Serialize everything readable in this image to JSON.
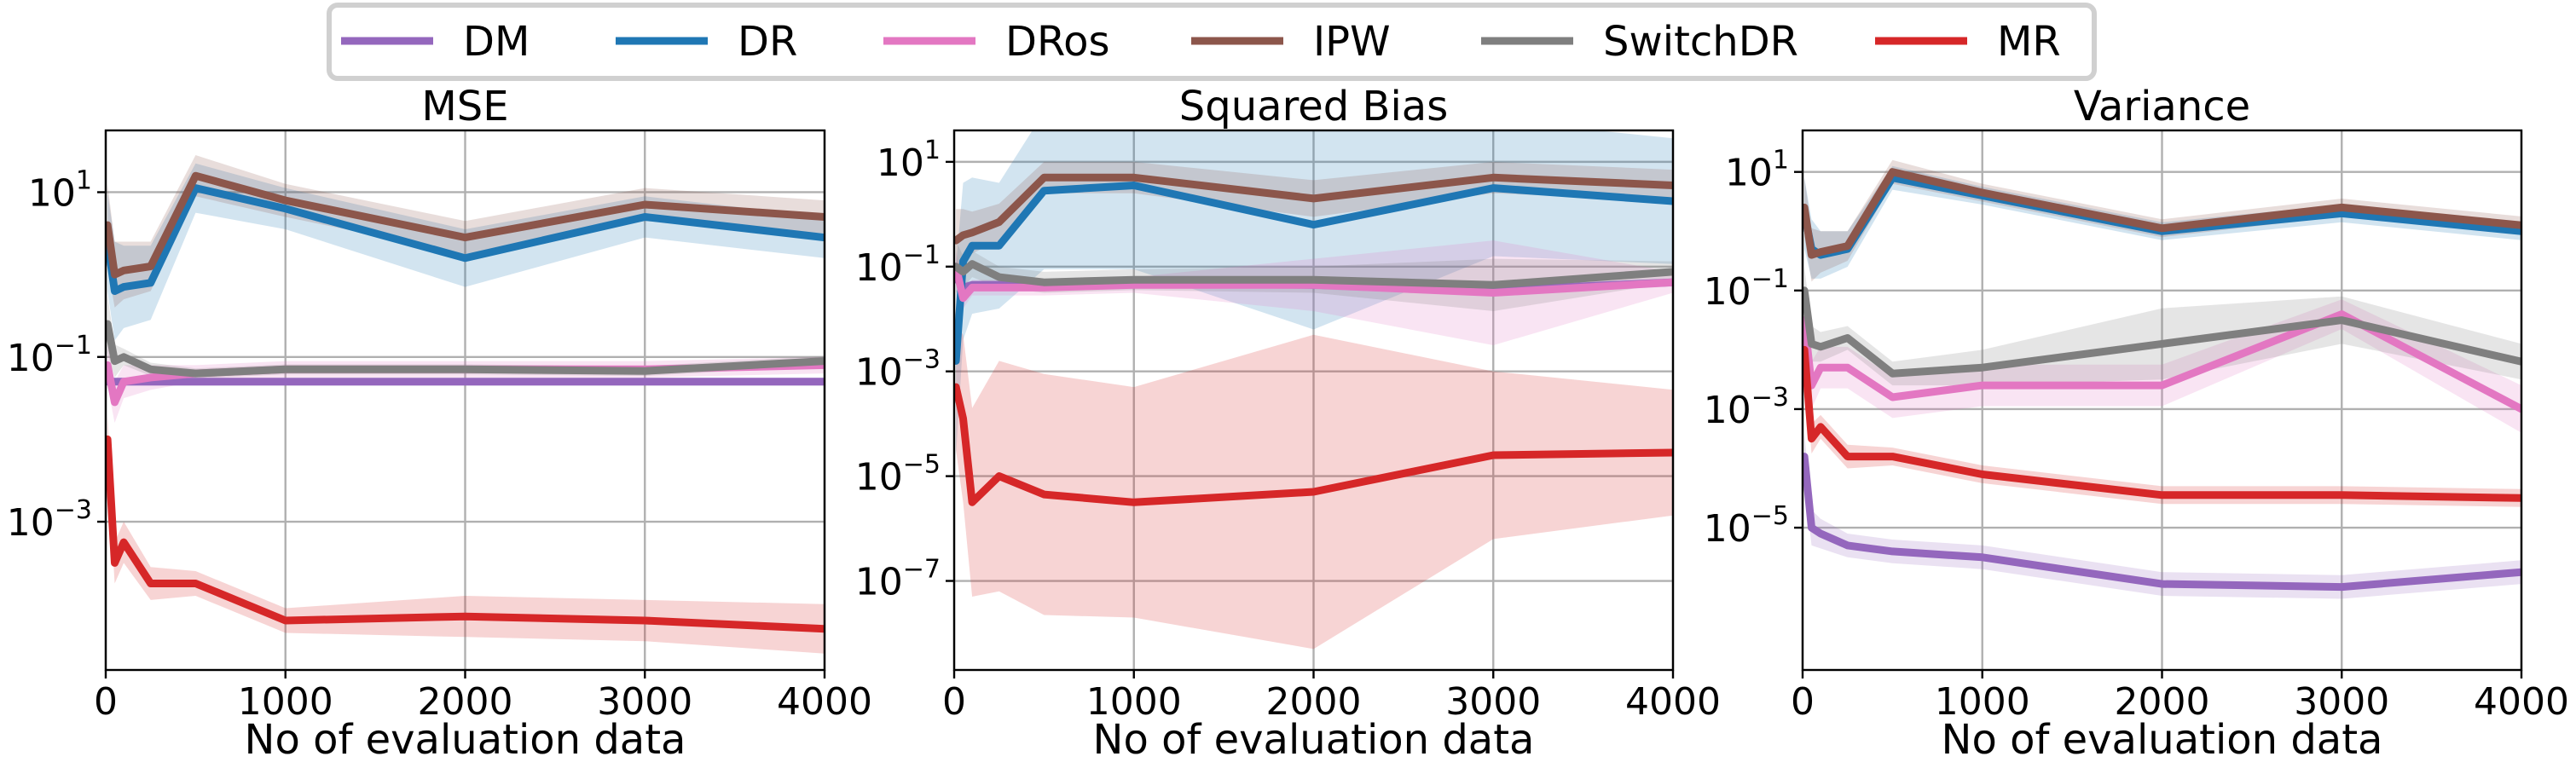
{
  "legend": [
    {
      "name": "DM",
      "color": "#9467bd"
    },
    {
      "name": "DR",
      "color": "#1f77b4"
    },
    {
      "name": "DRos",
      "color": "#e377c2"
    },
    {
      "name": "IPW",
      "color": "#8c564b"
    },
    {
      "name": "SwitchDR",
      "color": "#7f7f7f"
    },
    {
      "name": "MR",
      "color": "#d62728"
    }
  ],
  "chart_data": [
    {
      "type": "line",
      "title": "MSE",
      "xlabel": "No of evaluation data",
      "ylabel": "",
      "y_scale": "log",
      "xlim": [
        0,
        4000
      ],
      "ylim_log10": [
        -4.8,
        1.75
      ],
      "x_ticks": [
        "0",
        "1000",
        "2000",
        "3000",
        "4000"
      ],
      "y_ticks": [
        {
          "base": "10",
          "exp": "1",
          "log": 1
        },
        {
          "base": "10",
          "exp": "−1",
          "log": -1
        },
        {
          "base": "10",
          "exp": "−3",
          "log": -3
        }
      ],
      "grid": true,
      "x": [
        10,
        50,
        100,
        250,
        500,
        1000,
        2000,
        3000,
        4000
      ],
      "series": [
        {
          "name": "DM",
          "color": "#9467bd",
          "log10_y": [
            -1.3,
            -1.3,
            -1.3,
            -1.3,
            -1.3,
            -1.3,
            -1.3,
            -1.3,
            -1.3
          ],
          "band": [
            0.05,
            0.05,
            0.05,
            0.05,
            0.05,
            0.05,
            0.05,
            0.05,
            0.05
          ]
        },
        {
          "name": "DR",
          "color": "#1f77b4",
          "log10_y": [
            0.4,
            -0.2,
            -0.15,
            -0.1,
            1.05,
            0.8,
            0.2,
            0.7,
            0.45
          ],
          "band": [
            0.6,
            0.6,
            0.5,
            0.45,
            0.3,
            0.25,
            0.35,
            0.25,
            0.25
          ]
        },
        {
          "name": "DRos",
          "color": "#e377c2",
          "log10_y": [
            -1.1,
            -1.55,
            -1.3,
            -1.25,
            -1.2,
            -1.15,
            -1.15,
            -1.15,
            -1.1
          ],
          "band": [
            0.25,
            0.25,
            0.2,
            0.15,
            0.1,
            0.1,
            0.1,
            0.1,
            0.1
          ]
        },
        {
          "name": "IPW",
          "color": "#8c564b",
          "log10_y": [
            0.6,
            0.0,
            0.05,
            0.1,
            1.2,
            0.9,
            0.45,
            0.85,
            0.7
          ],
          "band": [
            0.5,
            0.4,
            0.35,
            0.3,
            0.25,
            0.2,
            0.2,
            0.2,
            0.2
          ]
        },
        {
          "name": "SwitchDR",
          "color": "#7f7f7f",
          "log10_y": [
            -0.6,
            -1.05,
            -1.0,
            -1.15,
            -1.2,
            -1.15,
            -1.15,
            -1.17,
            -1.05
          ],
          "band": [
            0.35,
            0.2,
            0.1,
            0.08,
            0.06,
            0.06,
            0.06,
            0.06,
            0.06
          ]
        },
        {
          "name": "MR",
          "color": "#d62728",
          "log10_y": [
            -2.0,
            -3.5,
            -3.25,
            -3.75,
            -3.75,
            -4.2,
            -4.15,
            -4.2,
            -4.3
          ],
          "band": [
            0.3,
            0.25,
            0.25,
            0.2,
            0.15,
            0.15,
            0.25,
            0.25,
            0.3
          ]
        }
      ]
    },
    {
      "type": "line",
      "title": "Squared Bias",
      "xlabel": "No of evaluation data",
      "ylabel": "",
      "y_scale": "log",
      "xlim": [
        0,
        4000
      ],
      "ylim_log10": [
        -8.7,
        1.6
      ],
      "x_ticks": [
        "0",
        "1000",
        "2000",
        "3000",
        "4000"
      ],
      "y_ticks": [
        {
          "base": "10",
          "exp": "1",
          "log": 1
        },
        {
          "base": "10",
          "exp": "−1",
          "log": -1
        },
        {
          "base": "10",
          "exp": "−3",
          "log": -3
        },
        {
          "base": "10",
          "exp": "−5",
          "log": -5
        },
        {
          "base": "10",
          "exp": "−7",
          "log": -7
        }
      ],
      "grid": true,
      "x": [
        10,
        50,
        100,
        250,
        500,
        1000,
        2000,
        3000,
        4000
      ],
      "series": [
        {
          "name": "DM",
          "color": "#9467bd",
          "log10_y": [
            -1.2,
            -1.4,
            -1.35,
            -1.35,
            -1.35,
            -1.3,
            -1.35,
            -1.45,
            -1.3
          ],
          "band": [
            0.1,
            0.1,
            0.08,
            0.08,
            0.08,
            0.08,
            0.08,
            0.1,
            0.08
          ]
        },
        {
          "name": "DR",
          "color": "#1f77b4",
          "log10_y": [
            -2.8,
            -0.9,
            -0.6,
            -0.6,
            0.45,
            0.55,
            -0.2,
            0.5,
            0.25
          ],
          "band": [
            1.8,
            1.5,
            1.3,
            1.2,
            1.5,
            1.6,
            2.0,
            1.3,
            1.2
          ]
        },
        {
          "name": "DRos",
          "color": "#e377c2",
          "log10_y": [
            -1.0,
            -1.6,
            -1.4,
            -1.4,
            -1.4,
            -1.35,
            -1.35,
            -1.5,
            -1.3
          ],
          "band": [
            0.3,
            0.2,
            0.15,
            0.15,
            0.15,
            0.15,
            0.5,
            1.0,
            0.2
          ]
        },
        {
          "name": "IPW",
          "color": "#8c564b",
          "log10_y": [
            -0.5,
            -0.4,
            -0.35,
            -0.15,
            0.7,
            0.7,
            0.3,
            0.7,
            0.55
          ],
          "band": [
            0.6,
            0.5,
            0.4,
            0.35,
            0.3,
            0.3,
            0.35,
            0.3,
            0.3
          ]
        },
        {
          "name": "SwitchDR",
          "color": "#7f7f7f",
          "log10_y": [
            -1.0,
            -1.1,
            -0.95,
            -1.2,
            -1.3,
            -1.25,
            -1.25,
            -1.35,
            -1.1
          ],
          "band": [
            0.5,
            0.3,
            0.25,
            0.2,
            0.2,
            0.2,
            0.25,
            0.5,
            0.2
          ]
        },
        {
          "name": "MR",
          "color": "#d62728",
          "log10_y": [
            -3.3,
            -3.9,
            -5.5,
            -5.0,
            -5.35,
            -5.5,
            -5.3,
            -4.6,
            -4.55
          ],
          "band": [
            1.2,
            1.6,
            1.8,
            2.2,
            2.3,
            2.2,
            3.0,
            1.6,
            1.2
          ]
        }
      ]
    },
    {
      "type": "line",
      "title": "Variance",
      "xlabel": "No of evaluation data",
      "ylabel": "",
      "y_scale": "log",
      "xlim": [
        0,
        4000
      ],
      "ylim_log10": [
        -7.4,
        1.7
      ],
      "x_ticks": [
        "0",
        "1000",
        "2000",
        "3000",
        "4000"
      ],
      "y_ticks": [
        {
          "base": "10",
          "exp": "1",
          "log": 1
        },
        {
          "base": "10",
          "exp": "−1",
          "log": -1
        },
        {
          "base": "10",
          "exp": "−3",
          "log": -3
        },
        {
          "base": "10",
          "exp": "−5",
          "log": -5
        }
      ],
      "grid": true,
      "x": [
        10,
        50,
        100,
        250,
        500,
        1000,
        2000,
        3000,
        4000
      ],
      "series": [
        {
          "name": "DM",
          "color": "#9467bd",
          "log10_y": [
            -3.8,
            -5.0,
            -5.1,
            -5.3,
            -5.4,
            -5.5,
            -5.95,
            -6.0,
            -5.75
          ],
          "band": [
            0.4,
            0.3,
            0.25,
            0.2,
            0.2,
            0.2,
            0.2,
            0.2,
            0.2
          ]
        },
        {
          "name": "DR",
          "color": "#1f77b4",
          "log10_y": [
            0.3,
            -0.3,
            -0.4,
            -0.3,
            0.9,
            0.6,
            0.0,
            0.3,
            0.0
          ],
          "band": [
            0.6,
            0.5,
            0.4,
            0.3,
            0.2,
            0.15,
            0.15,
            0.15,
            0.15
          ]
        },
        {
          "name": "DRos",
          "color": "#e377c2",
          "log10_y": [
            -1.5,
            -2.6,
            -2.3,
            -2.3,
            -2.8,
            -2.6,
            -2.6,
            -1.4,
            -3.0
          ],
          "band": [
            0.5,
            0.4,
            0.35,
            0.35,
            0.35,
            0.35,
            0.35,
            0.25,
            0.4
          ]
        },
        {
          "name": "IPW",
          "color": "#8c564b",
          "log10_y": [
            0.4,
            -0.4,
            -0.35,
            -0.25,
            1.0,
            0.65,
            0.05,
            0.4,
            0.1
          ],
          "band": [
            0.5,
            0.45,
            0.35,
            0.25,
            0.2,
            0.15,
            0.15,
            0.15,
            0.15
          ]
        },
        {
          "name": "SwitchDR",
          "color": "#7f7f7f",
          "log10_y": [
            -1.0,
            -1.9,
            -1.95,
            -1.8,
            -2.4,
            -2.3,
            -1.9,
            -1.5,
            -2.2
          ],
          "band": [
            0.4,
            0.3,
            0.25,
            0.2,
            0.2,
            0.3,
            0.6,
            0.4,
            0.3
          ]
        },
        {
          "name": "MR",
          "color": "#d62728",
          "log10_y": [
            -2.0,
            -3.5,
            -3.3,
            -3.8,
            -3.8,
            -4.1,
            -4.45,
            -4.45,
            -4.5
          ],
          "band": [
            0.3,
            0.25,
            0.2,
            0.2,
            0.15,
            0.15,
            0.15,
            0.15,
            0.15
          ]
        }
      ]
    }
  ]
}
